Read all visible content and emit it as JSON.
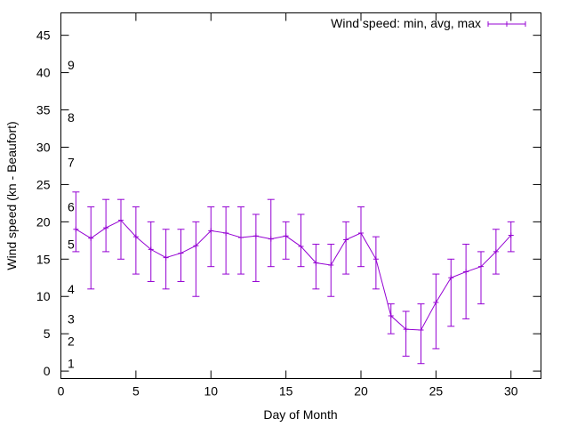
{
  "chart_data": {
    "type": "line-errorbar",
    "title": "",
    "xlabel": "Day of Month",
    "ylabel": "Wind speed (kn - Beaufort)",
    "xlim": [
      0,
      32
    ],
    "ylim": [
      -1,
      48
    ],
    "xticks": [
      0,
      5,
      10,
      15,
      20,
      25,
      30
    ],
    "yticks": [
      0,
      5,
      10,
      15,
      20,
      25,
      30,
      35,
      40,
      45
    ],
    "grid": false,
    "legend": {
      "position": "top-right",
      "label": "Wind speed: min, avg, max"
    },
    "beaufort_labels": [
      {
        "label": "1",
        "value": 1
      },
      {
        "label": "2",
        "value": 4
      },
      {
        "label": "3",
        "value": 7
      },
      {
        "label": "4",
        "value": 11
      },
      {
        "label": "5",
        "value": 17
      },
      {
        "label": "6",
        "value": 22
      },
      {
        "label": "7",
        "value": 28
      },
      {
        "label": "8",
        "value": 34
      },
      {
        "label": "9",
        "value": 41
      }
    ],
    "series": [
      {
        "name": "Wind speed: min, avg, max",
        "color": "#9400d3",
        "points": [
          {
            "x": 1,
            "avg": 19.0,
            "min": 16,
            "max": 24
          },
          {
            "x": 2,
            "avg": 17.8,
            "min": 11,
            "max": 22
          },
          {
            "x": 3,
            "avg": 19.2,
            "min": 16,
            "max": 23
          },
          {
            "x": 4,
            "avg": 20.2,
            "min": 15,
            "max": 23
          },
          {
            "x": 5,
            "avg": 18.0,
            "min": 13,
            "max": 22
          },
          {
            "x": 6,
            "avg": 16.3,
            "min": 12,
            "max": 20
          },
          {
            "x": 7,
            "avg": 15.2,
            "min": 11,
            "max": 19
          },
          {
            "x": 8,
            "avg": 15.8,
            "min": 12,
            "max": 19
          },
          {
            "x": 9,
            "avg": 16.8,
            "min": 10,
            "max": 20
          },
          {
            "x": 10,
            "avg": 18.8,
            "min": 14,
            "max": 22
          },
          {
            "x": 11,
            "avg": 18.5,
            "min": 13,
            "max": 22
          },
          {
            "x": 12,
            "avg": 17.9,
            "min": 13,
            "max": 22
          },
          {
            "x": 13,
            "avg": 18.1,
            "min": 12,
            "max": 21
          },
          {
            "x": 14,
            "avg": 17.7,
            "min": 14,
            "max": 23
          },
          {
            "x": 15,
            "avg": 18.1,
            "min": 15,
            "max": 20
          },
          {
            "x": 16,
            "avg": 16.7,
            "min": 14,
            "max": 21
          },
          {
            "x": 17,
            "avg": 14.5,
            "min": 11,
            "max": 17
          },
          {
            "x": 18,
            "avg": 14.2,
            "min": 10,
            "max": 17
          },
          {
            "x": 19,
            "avg": 17.6,
            "min": 13,
            "max": 20
          },
          {
            "x": 20,
            "avg": 18.5,
            "min": 14,
            "max": 22
          },
          {
            "x": 21,
            "avg": 15.0,
            "min": 11,
            "max": 18
          },
          {
            "x": 22,
            "avg": 7.4,
            "min": 5,
            "max": 9
          },
          {
            "x": 23,
            "avg": 5.6,
            "min": 2,
            "max": 8
          },
          {
            "x": 24,
            "avg": 5.5,
            "min": 1,
            "max": 9
          },
          {
            "x": 25,
            "avg": 9.2,
            "min": 3,
            "max": 13
          },
          {
            "x": 26,
            "avg": 12.5,
            "min": 6,
            "max": 15
          },
          {
            "x": 27,
            "avg": 13.3,
            "min": 7,
            "max": 17
          },
          {
            "x": 28,
            "avg": 14.0,
            "min": 9,
            "max": 16
          },
          {
            "x": 29,
            "avg": 16.0,
            "min": 13,
            "max": 19
          },
          {
            "x": 30,
            "avg": 18.2,
            "min": 16,
            "max": 20
          }
        ]
      }
    ]
  }
}
